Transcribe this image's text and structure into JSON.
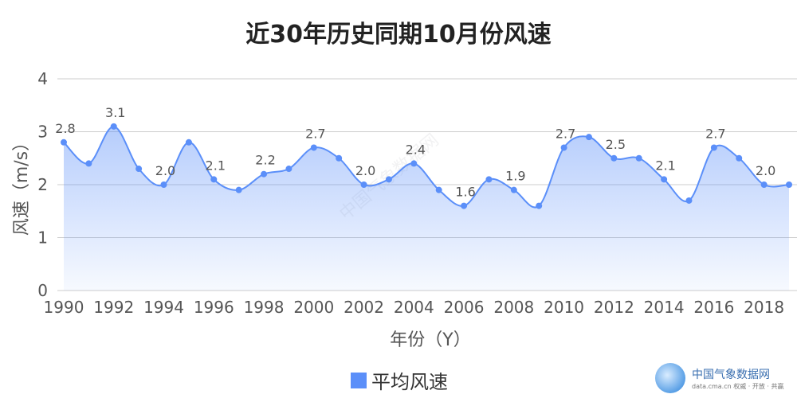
{
  "title": "近30年历史同期10月份风速",
  "legend": {
    "label": "平均风速",
    "color": "#5b8ff9"
  },
  "watermark": "中国气象数据网",
  "brand": {
    "name": "中国气象数据网",
    "url": "data.cma.cn 权威 · 开放 · 共赢"
  },
  "chart_data": {
    "type": "area",
    "xlabel": "年份（Y）",
    "ylabel": "风速（m/s）",
    "ylim": [
      0,
      4
    ],
    "yticks": [
      0,
      1,
      2,
      3,
      4
    ],
    "xticks": [
      1990,
      1992,
      1994,
      1996,
      1998,
      2000,
      2002,
      2004,
      2006,
      2008,
      2010,
      2012,
      2014,
      2016,
      2018
    ],
    "grid": true,
    "legend_position": "bottom",
    "series": [
      {
        "name": "平均风速",
        "color": "#5b8ff9",
        "x": [
          1990,
          1991,
          1992,
          1993,
          1994,
          1995,
          1996,
          1997,
          1998,
          1999,
          2000,
          2001,
          2002,
          2003,
          2004,
          2005,
          2006,
          2007,
          2008,
          2009,
          2010,
          2011,
          2012,
          2013,
          2014,
          2015,
          2016,
          2017,
          2018,
          2019
        ],
        "values": [
          2.8,
          2.4,
          3.1,
          2.3,
          2.0,
          2.8,
          2.1,
          1.9,
          2.2,
          2.3,
          2.7,
          2.5,
          2.0,
          2.1,
          2.4,
          1.9,
          1.6,
          2.1,
          1.9,
          1.6,
          2.7,
          2.9,
          2.5,
          2.5,
          2.1,
          1.7,
          2.7,
          2.5,
          2.0,
          2.0
        ]
      }
    ],
    "data_labels": [
      {
        "x": 1990,
        "text": "2.8"
      },
      {
        "x": 1992,
        "text": "3.1"
      },
      {
        "x": 1994,
        "text": "2.0"
      },
      {
        "x": 1996,
        "text": "2.1"
      },
      {
        "x": 1998,
        "text": "2.2"
      },
      {
        "x": 2000,
        "text": "2.7"
      },
      {
        "x": 2002,
        "text": "2.0"
      },
      {
        "x": 2004,
        "text": "2.4"
      },
      {
        "x": 2006,
        "text": "1.6"
      },
      {
        "x": 2008,
        "text": "1.9"
      },
      {
        "x": 2010,
        "text": "2.7"
      },
      {
        "x": 2012,
        "text": "2.5"
      },
      {
        "x": 2014,
        "text": "2.1"
      },
      {
        "x": 2016,
        "text": "2.7"
      },
      {
        "x": 2018,
        "text": "2.0"
      }
    ]
  }
}
